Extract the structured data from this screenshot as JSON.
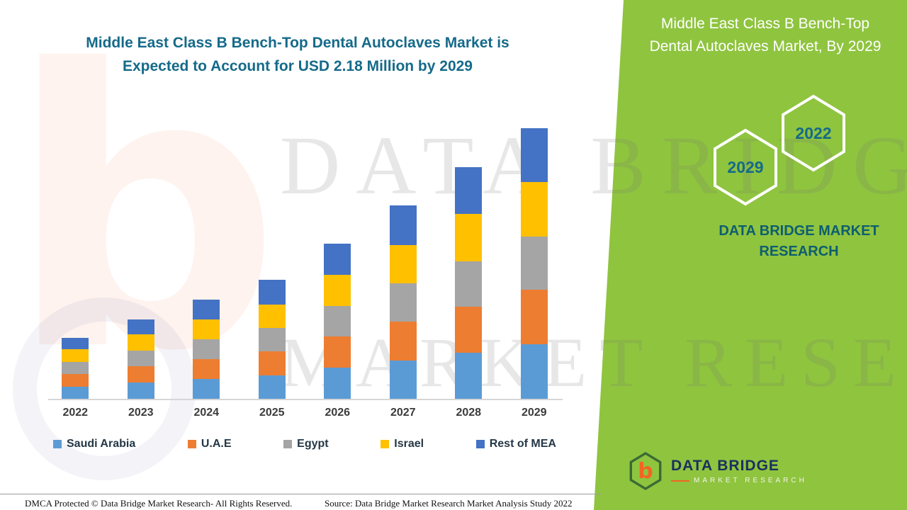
{
  "colors": {
    "panel_green": "#8fc43f",
    "title_teal": "#156a8a",
    "brand_teal": "#0e5e70",
    "logo_navy": "#1b2f5e",
    "logo_orange": "#f26522"
  },
  "header": {
    "left_title_line1": "Middle East Class B Bench-Top Dental Autoclaves Market is",
    "left_title_line2": "Expected to Account for USD 2.18 Million by 2029",
    "right_title": "Middle East Class B Bench-Top Dental Autoclaves Market, By 2029"
  },
  "side_panel": {
    "hexagons": [
      {
        "label": "2029"
      },
      {
        "label": "2022"
      }
    ],
    "brand_line1": "DATA BRIDGE MARKET",
    "brand_line2": "RESEARCH"
  },
  "watermark": {
    "line1": "DATA BRIDGE",
    "line2": "MARKET RESEARCH",
    "logo_letter": "b"
  },
  "chart_data": {
    "type": "bar",
    "stacked": true,
    "title": "Middle East Class B Bench-Top Dental Autoclaves Market is Expected to Account for USD 2.18 Million by 2029",
    "unit": "USD Million",
    "xlabel": "",
    "ylabel": "",
    "ylim": [
      0,
      2.4
    ],
    "grid": false,
    "legend_position": "bottom",
    "categories": [
      "2022",
      "2023",
      "2024",
      "2025",
      "2026",
      "2027",
      "2028",
      "2029"
    ],
    "series": [
      {
        "name": "Saudi Arabia",
        "color": "#5B9BD5",
        "values": [
          0.1,
          0.13,
          0.16,
          0.19,
          0.25,
          0.31,
          0.37,
          0.44
        ]
      },
      {
        "name": "U.A.E",
        "color": "#ED7D31",
        "values": [
          0.1,
          0.13,
          0.16,
          0.19,
          0.25,
          0.31,
          0.37,
          0.44
        ]
      },
      {
        "name": "Egypt",
        "color": "#A5A5A5",
        "values": [
          0.1,
          0.13,
          0.16,
          0.19,
          0.25,
          0.31,
          0.37,
          0.43
        ]
      },
      {
        "name": "Israel",
        "color": "#FFC000",
        "values": [
          0.1,
          0.13,
          0.16,
          0.19,
          0.25,
          0.31,
          0.38,
          0.44
        ]
      },
      {
        "name": "Rest of MEA",
        "color": "#4472C4",
        "values": [
          0.09,
          0.12,
          0.16,
          0.2,
          0.25,
          0.32,
          0.38,
          0.43
        ]
      }
    ],
    "totals": [
      0.49,
      0.64,
      0.8,
      0.96,
      1.25,
      1.56,
      1.87,
      2.18
    ]
  },
  "footer": {
    "left": "DMCA Protected © Data Bridge Market Research- All Rights Reserved.",
    "source": "Source: Data Bridge Market Research Market Analysis Study 2022"
  },
  "logo": {
    "letter": "b",
    "brand": "DATA BRIDGE",
    "sub": "MARKET RESEARCH"
  }
}
